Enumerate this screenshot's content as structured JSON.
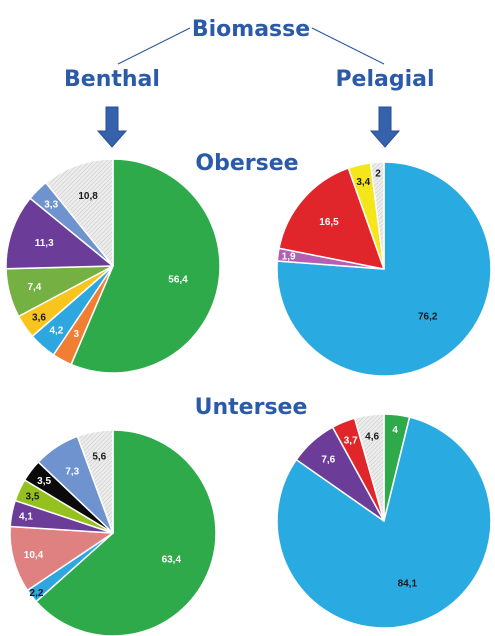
{
  "header": {
    "title": "Biomasse",
    "left_label": "Benthal",
    "right_label": "Pelagial",
    "upper_lake": "Obersee",
    "lower_lake": "Untersee"
  },
  "colors": {
    "heading": "#2b5aa8",
    "arrow": "#3562ad",
    "hatch": "#d9d9d9"
  },
  "chart_data": [
    {
      "type": "pie",
      "title": "",
      "group": "Obersee / Benthal",
      "slices": [
        {
          "value": 56.4,
          "label": "56,4",
          "color": "#2eaa4b",
          "label_color": "#ffffff"
        },
        {
          "value": 3.0,
          "label": "3",
          "color": "#f07f34",
          "label_color": "#ffffff"
        },
        {
          "value": 4.2,
          "label": "4,2",
          "color": "#2ea7e0",
          "label_color": "#ffffff"
        },
        {
          "value": 3.6,
          "label": "3,6",
          "color": "#f7c51e",
          "label_color": "#1a1a1a"
        },
        {
          "value": 7.4,
          "label": "7,4",
          "color": "#75b043",
          "label_color": "#ffffff"
        },
        {
          "value": 11.3,
          "label": "11,3",
          "color": "#6b3c98",
          "label_color": "#ffffff"
        },
        {
          "value": 3.3,
          "label": "3,3",
          "color": "#6f93cf",
          "label_color": "#ffffff"
        },
        {
          "value": 10.8,
          "label": "10,8",
          "color": "#e8e8e8",
          "label_color": "#1a1a1a",
          "hatched": true
        }
      ]
    },
    {
      "type": "pie",
      "title": "",
      "group": "Obersee / Pelagial",
      "slices": [
        {
          "value": 76.2,
          "label": "76,2",
          "color": "#29abe2",
          "label_color": "#1a1a1a"
        },
        {
          "value": 1.9,
          "label": "1,9",
          "color": "#b45fb4",
          "label_color": "#ffffff"
        },
        {
          "value": 16.5,
          "label": "16,5",
          "color": "#e1262b",
          "label_color": "#ffffff"
        },
        {
          "value": 3.4,
          "label": "3,4",
          "color": "#f5e61c",
          "label_color": "#1a1a1a"
        },
        {
          "value": 2.0,
          "label": "2",
          "color": "#e8e8e8",
          "label_color": "#1a1a1a",
          "hatched": true
        }
      ]
    },
    {
      "type": "pie",
      "title": "",
      "group": "Untersee / Benthal",
      "slices": [
        {
          "value": 63.4,
          "label": "63,4",
          "color": "#2eaa4b",
          "label_color": "#ffffff"
        },
        {
          "value": 2.2,
          "label": "2,2",
          "color": "#2ea7e0",
          "label_color": "#1a1a1a"
        },
        {
          "value": 10.4,
          "label": "10,4",
          "color": "#e08181",
          "label_color": "#ffffff"
        },
        {
          "value": 4.1,
          "label": "4,1",
          "color": "#6b3c98",
          "label_color": "#ffffff"
        },
        {
          "value": 3.5,
          "label": "3,5",
          "color": "#95c11f",
          "label_color": "#1a1a1a"
        },
        {
          "value": 3.5,
          "label": "3,5",
          "color": "#0a0a0a",
          "label_color": "#ffffff"
        },
        {
          "value": 7.3,
          "label": "7,3",
          "color": "#6f93cf",
          "label_color": "#ffffff"
        },
        {
          "value": 5.6,
          "label": "5,6",
          "color": "#e8e8e8",
          "label_color": "#1a1a1a",
          "hatched": true
        }
      ]
    },
    {
      "type": "pie",
      "title": "",
      "group": "Untersee / Pelagial",
      "slices": [
        {
          "value": 4.0,
          "label": "4",
          "color": "#2eaa4b",
          "label_color": "#ffffff"
        },
        {
          "value": 84.1,
          "label": "84,1",
          "color": "#29abe2",
          "label_color": "#1a1a1a"
        },
        {
          "value": 7.6,
          "label": "7,6",
          "color": "#6b3c98",
          "label_color": "#ffffff"
        },
        {
          "value": 3.7,
          "label": "3,7",
          "color": "#e1262b",
          "label_color": "#ffffff"
        },
        {
          "value": 4.6,
          "label": "4,6",
          "color": "#e8e8e8",
          "label_color": "#1a1a1a",
          "hatched": true
        }
      ]
    }
  ]
}
